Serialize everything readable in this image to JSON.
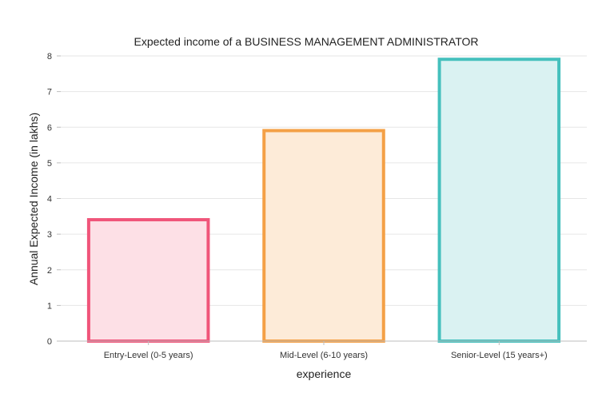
{
  "chart_data": {
    "type": "bar",
    "title": "Expected income of a BUSINESS MANAGEMENT ADMINISTRATOR",
    "xlabel": "experience",
    "ylabel": "Annual Expected Income (in lakhs)",
    "categories": [
      "Entry-Level (0-5 years)",
      "Mid-Level (6-10 years)",
      "Senior-Level (15 years+)"
    ],
    "values": [
      3.45,
      5.95,
      7.95
    ],
    "ylim": [
      0,
      8
    ],
    "yticks": [
      "0",
      "1",
      "2",
      "3",
      "4",
      "5",
      "6",
      "7",
      "8"
    ],
    "grid": true,
    "legend": "none",
    "colors": {
      "borders": [
        "#f0557a",
        "#f4a046",
        "#45c0bd"
      ],
      "fills": [
        "#fde0e6",
        "#fdebd8",
        "#daf2f2"
      ]
    }
  }
}
